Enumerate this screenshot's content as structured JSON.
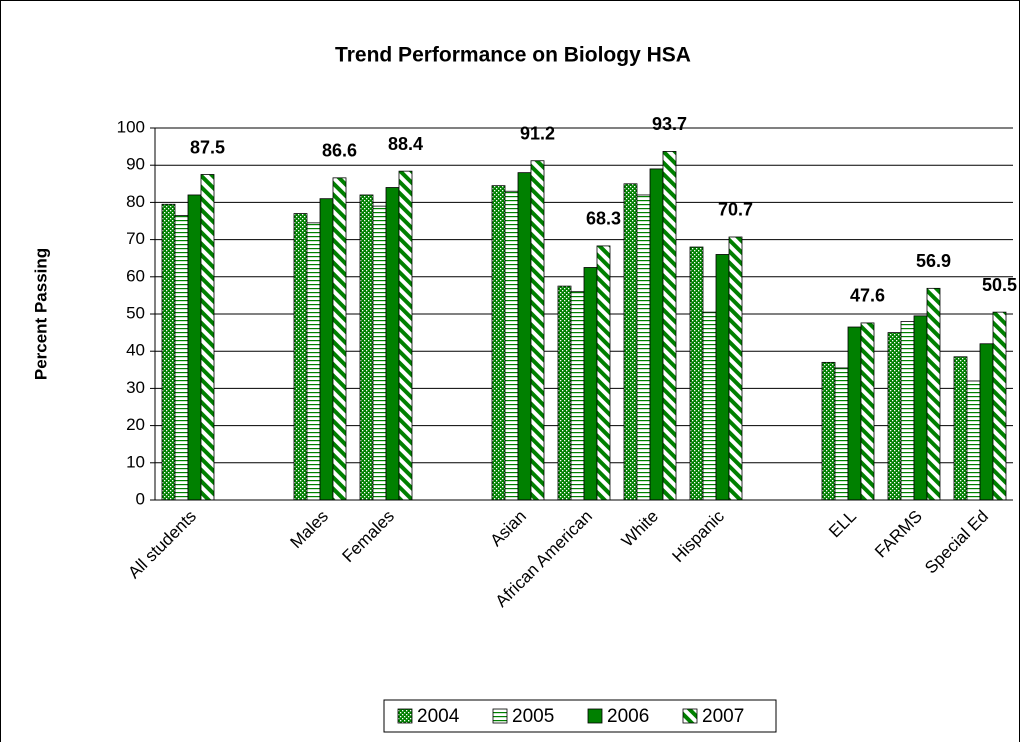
{
  "chart_data": {
    "type": "bar",
    "title": "Trend Performance on Biology HSA",
    "y_label": "Percent Passing",
    "categories": [
      "All students",
      null,
      "Males",
      "Females",
      null,
      "Asian",
      "African American",
      "White",
      "Hispanic",
      null,
      "ELL",
      "FARMS",
      "Special Ed"
    ],
    "series": [
      {
        "name": "2004",
        "color": "#008000",
        "pattern": "dots",
        "values": [
          79.5,
          null,
          77,
          82,
          null,
          84.5,
          57.5,
          85,
          68,
          null,
          37,
          45,
          38.5
        ]
      },
      {
        "name": "2005",
        "color": "#008000",
        "pattern": "horizontal",
        "values": [
          76.5,
          null,
          74.5,
          79,
          null,
          83,
          56,
          82,
          50.5,
          null,
          35.5,
          48,
          32
        ]
      },
      {
        "name": "2006",
        "color": "#008000",
        "pattern": "solid",
        "values": [
          82,
          null,
          81,
          84,
          null,
          88,
          62.5,
          89,
          66,
          null,
          46.5,
          49.5,
          42
        ]
      },
      {
        "name": "2007",
        "color": "#008000",
        "pattern": "diagonal",
        "data_labels": true,
        "values": [
          87.5,
          null,
          86.6,
          88.4,
          null,
          91.2,
          68.3,
          93.7,
          70.7,
          null,
          47.6,
          56.9,
          50.5
        ]
      }
    ],
    "ylim": [
      0,
      100
    ],
    "yticks": [
      0,
      10,
      20,
      30,
      40,
      50,
      60,
      70,
      80,
      90,
      100
    ],
    "grid": true,
    "legend": "bottom"
  }
}
